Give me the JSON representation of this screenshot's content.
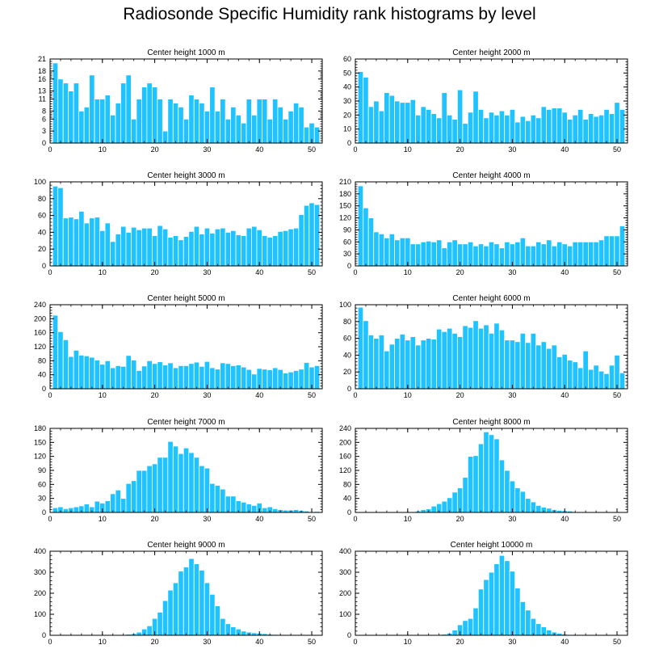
{
  "page_title": "Radiosonde Specific Humidity rank histograms by level",
  "colors": {
    "bar": "#1ec3ff",
    "bar_edge": "#ffffff",
    "axis": "#000000"
  },
  "chart_data": [
    {
      "type": "bar",
      "title": "Center height 1000 m",
      "xlim": [
        0,
        52
      ],
      "ylim": [
        0,
        21
      ],
      "xticks": [
        0,
        10,
        20,
        30,
        40,
        50
      ],
      "yticks": [
        0,
        3,
        6,
        8,
        11,
        13,
        16,
        18,
        21
      ],
      "x": [
        1,
        2,
        3,
        4,
        5,
        6,
        7,
        8,
        9,
        10,
        11,
        12,
        13,
        14,
        15,
        16,
        17,
        18,
        19,
        20,
        21,
        22,
        23,
        24,
        25,
        26,
        27,
        28,
        29,
        30,
        31,
        32,
        33,
        34,
        35,
        36,
        37,
        38,
        39,
        40,
        41,
        42,
        43,
        44,
        45,
        46,
        47,
        48,
        49,
        50,
        51
      ],
      "values": [
        20,
        16,
        15,
        13,
        15,
        8,
        9,
        17,
        11,
        11,
        12,
        7,
        10,
        15,
        17,
        6,
        11,
        14,
        15,
        14,
        11,
        3,
        11,
        10,
        9,
        6,
        12,
        11,
        10,
        8,
        14,
        8,
        11,
        6,
        9,
        7,
        5,
        11,
        7,
        11,
        11,
        6,
        11,
        9,
        6,
        8,
        10,
        9,
        4,
        5,
        4
      ]
    },
    {
      "type": "bar",
      "title": "Center height 2000 m",
      "xlim": [
        0,
        52
      ],
      "ylim": [
        0,
        60
      ],
      "xticks": [
        0,
        10,
        20,
        30,
        40,
        50
      ],
      "yticks": [
        0,
        10,
        20,
        30,
        40,
        50,
        60
      ],
      "x": [
        1,
        2,
        3,
        4,
        5,
        6,
        7,
        8,
        9,
        10,
        11,
        12,
        13,
        14,
        15,
        16,
        17,
        18,
        19,
        20,
        21,
        22,
        23,
        24,
        25,
        26,
        27,
        28,
        29,
        30,
        31,
        32,
        33,
        34,
        35,
        36,
        37,
        38,
        39,
        40,
        41,
        42,
        43,
        44,
        45,
        46,
        47,
        48,
        49,
        50,
        51
      ],
      "values": [
        51,
        47,
        26,
        30,
        23,
        36,
        34,
        30,
        29,
        29,
        31,
        20,
        26,
        24,
        21,
        18,
        36,
        20,
        17,
        38,
        14,
        22,
        37,
        24,
        18,
        22,
        20,
        23,
        20,
        24,
        15,
        19,
        16,
        20,
        18,
        26,
        24,
        25,
        25,
        22,
        17,
        20,
        24,
        17,
        21,
        19,
        20,
        24,
        21,
        29,
        24
      ]
    },
    {
      "type": "bar",
      "title": "Center height 3000 m",
      "xlim": [
        0,
        52
      ],
      "ylim": [
        0,
        100
      ],
      "xticks": [
        0,
        10,
        20,
        30,
        40,
        50
      ],
      "yticks": [
        0,
        20,
        40,
        60,
        80,
        100
      ],
      "x": [
        1,
        2,
        3,
        4,
        5,
        6,
        7,
        8,
        9,
        10,
        11,
        12,
        13,
        14,
        15,
        16,
        17,
        18,
        19,
        20,
        21,
        22,
        23,
        24,
        25,
        26,
        27,
        28,
        29,
        30,
        31,
        32,
        33,
        34,
        35,
        36,
        37,
        38,
        39,
        40,
        41,
        42,
        43,
        44,
        45,
        46,
        47,
        48,
        49,
        50,
        51
      ],
      "values": [
        95,
        93,
        57,
        58,
        56,
        65,
        51,
        57,
        58,
        42,
        51,
        29,
        38,
        47,
        40,
        46,
        43,
        45,
        45,
        36,
        48,
        44,
        34,
        36,
        31,
        35,
        41,
        47,
        38,
        45,
        39,
        44,
        45,
        40,
        42,
        37,
        36,
        45,
        47,
        43,
        36,
        34,
        36,
        41,
        42,
        44,
        45,
        61,
        72,
        75,
        73
      ]
    },
    {
      "type": "bar",
      "title": "Center height 4000 m",
      "xlim": [
        0,
        52
      ],
      "ylim": [
        0,
        210
      ],
      "xticks": [
        0,
        10,
        20,
        30,
        40,
        50
      ],
      "yticks": [
        0,
        30,
        60,
        90,
        120,
        150,
        180,
        210
      ],
      "x": [
        1,
        2,
        3,
        4,
        5,
        6,
        7,
        8,
        9,
        10,
        11,
        12,
        13,
        14,
        15,
        16,
        17,
        18,
        19,
        20,
        21,
        22,
        23,
        24,
        25,
        26,
        27,
        28,
        29,
        30,
        31,
        32,
        33,
        34,
        35,
        36,
        37,
        38,
        39,
        40,
        41,
        42,
        43,
        44,
        45,
        46,
        47,
        48,
        49,
        50,
        51
      ],
      "values": [
        200,
        145,
        120,
        85,
        80,
        70,
        80,
        65,
        70,
        70,
        55,
        55,
        60,
        62,
        60,
        65,
        45,
        60,
        65,
        55,
        55,
        60,
        50,
        55,
        50,
        60,
        55,
        45,
        60,
        55,
        60,
        70,
        50,
        50,
        60,
        55,
        65,
        50,
        60,
        55,
        50,
        60,
        60,
        60,
        60,
        60,
        65,
        75,
        75,
        75,
        100
      ]
    },
    {
      "type": "bar",
      "title": "Center height 5000 m",
      "xlim": [
        0,
        52
      ],
      "ylim": [
        0,
        240
      ],
      "xticks": [
        0,
        10,
        20,
        30,
        40,
        50
      ],
      "yticks": [
        0,
        40,
        80,
        120,
        160,
        200,
        240
      ],
      "x": [
        1,
        2,
        3,
        4,
        5,
        6,
        7,
        8,
        9,
        10,
        11,
        12,
        13,
        14,
        15,
        16,
        17,
        18,
        19,
        20,
        21,
        22,
        23,
        24,
        25,
        26,
        27,
        28,
        29,
        30,
        31,
        32,
        33,
        34,
        35,
        36,
        37,
        38,
        39,
        40,
        41,
        42,
        43,
        44,
        45,
        46,
        47,
        48,
        49,
        50,
        51
      ],
      "values": [
        210,
        163,
        140,
        92,
        110,
        96,
        94,
        90,
        82,
        70,
        80,
        60,
        66,
        64,
        95,
        82,
        52,
        65,
        80,
        72,
        77,
        68,
        74,
        60,
        66,
        66,
        72,
        76,
        64,
        78,
        60,
        56,
        74,
        72,
        66,
        68,
        62,
        55,
        42,
        58,
        56,
        54,
        60,
        55,
        45,
        48,
        52,
        56,
        75,
        62,
        66
      ]
    },
    {
      "type": "bar",
      "title": "Center height 6000 m",
      "xlim": [
        0,
        52
      ],
      "ylim": [
        0,
        100
      ],
      "xticks": [
        0,
        10,
        20,
        30,
        40,
        50
      ],
      "yticks": [
        0,
        20,
        40,
        60,
        80,
        100
      ],
      "x": [
        1,
        2,
        3,
        4,
        5,
        6,
        7,
        8,
        9,
        10,
        11,
        12,
        13,
        14,
        15,
        16,
        17,
        18,
        19,
        20,
        21,
        22,
        23,
        24,
        25,
        26,
        27,
        28,
        29,
        30,
        31,
        32,
        33,
        34,
        35,
        36,
        37,
        38,
        39,
        40,
        41,
        42,
        43,
        44,
        45,
        46,
        47,
        48,
        49,
        50,
        51
      ],
      "values": [
        97,
        81,
        64,
        60,
        64,
        45,
        53,
        60,
        65,
        58,
        62,
        52,
        58,
        60,
        59,
        71,
        68,
        72,
        66,
        62,
        75,
        73,
        81,
        72,
        76,
        66,
        78,
        70,
        58,
        58,
        56,
        66,
        55,
        66,
        52,
        56,
        48,
        52,
        38,
        41,
        34,
        32,
        25,
        45,
        23,
        28,
        21,
        18,
        28,
        40,
        19
      ]
    },
    {
      "type": "bar",
      "title": "Center height 7000 m",
      "xlim": [
        0,
        52
      ],
      "ylim": [
        0,
        180
      ],
      "xticks": [
        0,
        10,
        20,
        30,
        40,
        50
      ],
      "yticks": [
        0,
        30,
        60,
        90,
        120,
        150,
        180
      ],
      "x": [
        1,
        2,
        3,
        4,
        5,
        6,
        7,
        8,
        9,
        10,
        11,
        12,
        13,
        14,
        15,
        16,
        17,
        18,
        19,
        20,
        21,
        22,
        23,
        24,
        25,
        26,
        27,
        28,
        29,
        30,
        31,
        32,
        33,
        34,
        35,
        36,
        37,
        38,
        39,
        40,
        41,
        42,
        43,
        44,
        45,
        46,
        47,
        48,
        49,
        50,
        51
      ],
      "values": [
        10,
        12,
        8,
        10,
        12,
        14,
        18,
        12,
        24,
        20,
        25,
        40,
        48,
        30,
        62,
        68,
        90,
        90,
        100,
        104,
        118,
        118,
        152,
        142,
        126,
        138,
        128,
        118,
        100,
        95,
        62,
        58,
        50,
        35,
        35,
        25,
        22,
        18,
        15,
        20,
        10,
        12,
        8,
        6,
        5,
        5,
        6,
        4,
        3,
        1,
        2
      ]
    },
    {
      "type": "bar",
      "title": "Center height 8000 m",
      "xlim": [
        0,
        52
      ],
      "ylim": [
        0,
        240
      ],
      "xticks": [
        0,
        10,
        20,
        30,
        40,
        50
      ],
      "yticks": [
        0,
        40,
        80,
        120,
        160,
        200,
        240
      ],
      "x": [
        1,
        2,
        3,
        4,
        5,
        6,
        7,
        8,
        9,
        10,
        11,
        12,
        13,
        14,
        15,
        16,
        17,
        18,
        19,
        20,
        21,
        22,
        23,
        24,
        25,
        26,
        27,
        28,
        29,
        30,
        31,
        32,
        33,
        34,
        35,
        36,
        37,
        38,
        39,
        40,
        41,
        42,
        43,
        44,
        45,
        46,
        47,
        48,
        49,
        50,
        51
      ],
      "values": [
        0,
        0,
        0,
        0,
        0,
        0,
        0,
        1,
        1,
        1,
        2,
        4,
        8,
        10,
        18,
        25,
        32,
        42,
        58,
        70,
        100,
        160,
        162,
        196,
        230,
        222,
        210,
        150,
        120,
        90,
        70,
        60,
        40,
        30,
        20,
        15,
        12,
        8,
        6,
        5,
        4,
        2,
        2,
        1,
        1,
        0,
        0,
        0,
        0,
        0,
        0
      ]
    },
    {
      "type": "bar",
      "title": "Center height 9000 m",
      "xlim": [
        0,
        52
      ],
      "ylim": [
        0,
        400
      ],
      "xticks": [
        0,
        10,
        20,
        30,
        40,
        50
      ],
      "yticks": [
        0,
        100,
        200,
        300,
        400
      ],
      "x": [
        1,
        2,
        3,
        4,
        5,
        6,
        7,
        8,
        9,
        10,
        11,
        12,
        13,
        14,
        15,
        16,
        17,
        18,
        19,
        20,
        21,
        22,
        23,
        24,
        25,
        26,
        27,
        28,
        29,
        30,
        31,
        32,
        33,
        34,
        35,
        36,
        37,
        38,
        39,
        40,
        41,
        42,
        43,
        44,
        45,
        46,
        47,
        48,
        49,
        50,
        51
      ],
      "values": [
        0,
        0,
        0,
        0,
        0,
        0,
        0,
        0,
        0,
        0,
        0,
        0,
        1,
        2,
        5,
        8,
        15,
        30,
        45,
        80,
        110,
        165,
        215,
        250,
        305,
        325,
        365,
        340,
        310,
        250,
        195,
        140,
        80,
        55,
        40,
        30,
        20,
        15,
        12,
        10,
        8,
        5,
        4,
        3,
        2,
        1,
        1,
        0,
        0,
        0,
        0
      ]
    },
    {
      "type": "bar",
      "title": "Center height 10000 m",
      "xlim": [
        0,
        52
      ],
      "ylim": [
        0,
        400
      ],
      "xticks": [
        0,
        10,
        20,
        30,
        40,
        50
      ],
      "yticks": [
        0,
        100,
        200,
        300,
        400
      ],
      "x": [
        1,
        2,
        3,
        4,
        5,
        6,
        7,
        8,
        9,
        10,
        11,
        12,
        13,
        14,
        15,
        16,
        17,
        18,
        19,
        20,
        21,
        22,
        23,
        24,
        25,
        26,
        27,
        28,
        29,
        30,
        31,
        32,
        33,
        34,
        35,
        36,
        37,
        38,
        39,
        40,
        41,
        42,
        43,
        44,
        45,
        46,
        47,
        48,
        49,
        50,
        51
      ],
      "values": [
        0,
        0,
        0,
        0,
        0,
        0,
        0,
        0,
        0,
        0,
        0,
        0,
        0,
        0,
        1,
        2,
        5,
        10,
        25,
        50,
        70,
        80,
        130,
        220,
        265,
        300,
        340,
        380,
        355,
        305,
        225,
        160,
        120,
        80,
        55,
        40,
        25,
        15,
        10,
        5,
        3,
        2,
        1,
        1,
        0,
        0,
        0,
        0,
        0,
        0,
        0
      ]
    }
  ]
}
